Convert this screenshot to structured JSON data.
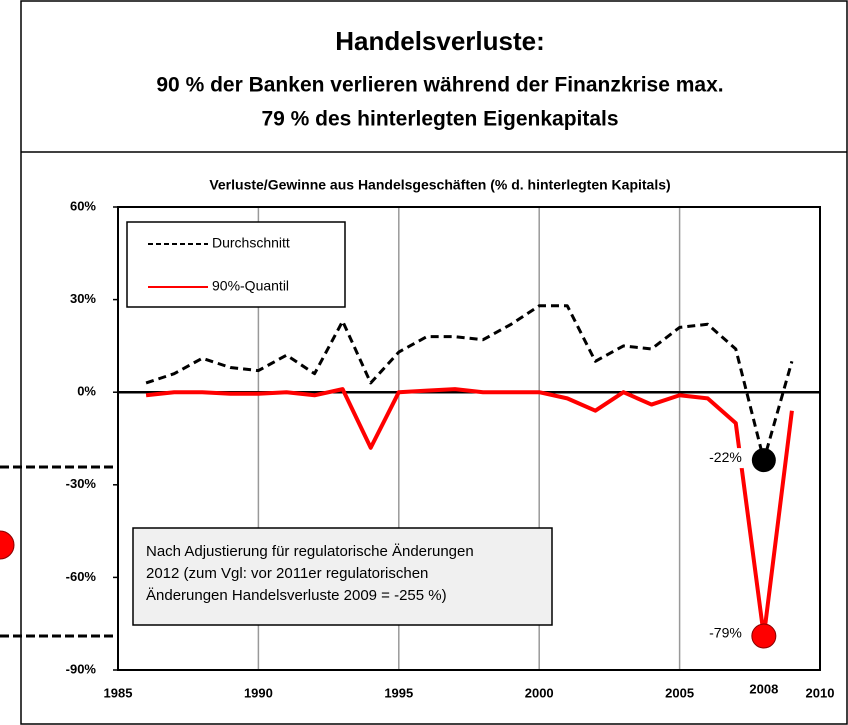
{
  "chart_data": {
    "type": "line",
    "title": "Handelsverluste:",
    "subtitle_lines": [
      "90 % der Banken verlieren während der Finanzkrise max.",
      "79 % des hinterlegten Eigenkapitals"
    ],
    "chart_title": "Verluste/Gewinne aus Handelsgeschäften (% d. hinterlegten Kapitals)",
    "x": [
      1986,
      1987,
      1988,
      1989,
      1990,
      1991,
      1992,
      1993,
      1994,
      1995,
      1996,
      1997,
      1998,
      1999,
      2000,
      2001,
      2002,
      2003,
      2004,
      2005,
      2006,
      2007,
      2008,
      2009
    ],
    "series": [
      {
        "name": "Durchschnitt",
        "color": "#000000",
        "dash": true,
        "values": [
          3,
          6,
          11,
          8,
          7,
          12,
          6,
          23,
          3,
          13,
          18,
          18,
          17,
          22,
          28,
          28,
          10,
          15,
          14,
          21,
          22,
          14,
          -22,
          10
        ]
      },
      {
        "name": "90%-Quantil",
        "color": "#ff0000",
        "dash": false,
        "values": [
          -1,
          0,
          0,
          -0.5,
          -0.5,
          0,
          -1,
          1,
          -18,
          0,
          0.5,
          1,
          0,
          0,
          0,
          -2,
          -6,
          0,
          -4,
          -1,
          -2,
          -10,
          -79,
          -6
        ]
      }
    ],
    "highlight_index": 22,
    "marked_year": 2008,
    "annotations": [
      {
        "text": "-22%",
        "x": 2008,
        "y": -22
      },
      {
        "text": "-79%",
        "x": 2008,
        "y": -79
      }
    ],
    "note_lines": [
      "Nach Adjustierung für regulatorische Änderungen",
      "2012 (zum Vgl: vor 2011er regulatorischen",
      "Änderungen Handelsverluste 2009 = -255 %)"
    ],
    "xlim": [
      1985,
      2010
    ],
    "xticks": [
      1985,
      1990,
      1995,
      2000,
      2005,
      2010
    ],
    "ylim": [
      -90,
      60
    ],
    "yticks": [
      {
        "value": -90,
        "label": "-90%"
      },
      {
        "value": -60,
        "label": "-60%"
      },
      {
        "value": -30,
        "label": "-30%"
      },
      {
        "value": 0,
        "label": "0%"
      },
      {
        "value": 30,
        "label": "30%"
      },
      {
        "value": 60,
        "label": "60%"
      }
    ],
    "grid": true
  }
}
